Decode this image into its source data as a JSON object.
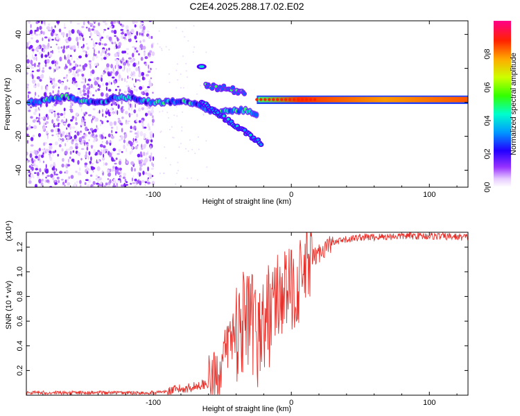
{
  "title": "C2E4.2025.288.17.02.E02",
  "chart_data": [
    {
      "type": "heatmap",
      "name": "spectrogram",
      "xlabel": "Height of straight line (km)",
      "ylabel": "Frequency (Hz)",
      "xlim": [
        -192,
        128
      ],
      "ylim": [
        -50,
        48
      ],
      "xticks": [
        -100,
        0,
        100
      ],
      "yticks": [
        -40,
        -20,
        0,
        20,
        40
      ],
      "colorbar": {
        "label": "Normalized spectral amplitude",
        "range": [
          0.0,
          1.0
        ],
        "ticks": [
          0.0,
          0.2,
          0.4,
          0.6,
          0.8
        ]
      },
      "features": [
        {
          "description": "scattered background noise",
          "x_range": [
            -192,
            -100
          ],
          "y_range": [
            -50,
            48
          ]
        },
        {
          "description": "main signal band near 0 Hz",
          "x_range": [
            -192,
            128
          ],
          "y_center": 1.5
        },
        {
          "description": "branch from main band",
          "x": [
            -65,
            -40,
            -22
          ],
          "y": [
            0,
            -12,
            -24
          ]
        },
        {
          "description": "upper branch",
          "x": [
            -64,
            -50,
            -35
          ],
          "y": [
            21,
            10,
            6
          ]
        }
      ]
    },
    {
      "type": "line",
      "name": "snr",
      "xlabel": "Height of straight line (km)",
      "ylabel": "SNR (10 * v/v)",
      "yscale_label": "(x10⁴)",
      "xlim": [
        -192,
        128
      ],
      "ylim": [
        0,
        1.32
      ],
      "xticks": [
        -100,
        0,
        100
      ],
      "yticks": [
        0.2,
        0.4,
        0.6,
        0.8,
        1.0,
        1.2
      ],
      "color": "#e8302a",
      "series": [
        {
          "name": "SNR",
          "x": [
            -192,
            -160,
            -130,
            -110,
            -100,
            -90,
            -80,
            -70,
            -60,
            -55,
            -50,
            -45,
            -40,
            -35,
            -30,
            -25,
            -20,
            -15,
            -10,
            -5,
            0,
            5,
            10,
            15,
            20,
            25,
            30,
            40,
            50,
            60,
            80,
            100,
            128
          ],
          "values": [
            0.02,
            0.02,
            0.02,
            0.02,
            0.02,
            0.03,
            0.05,
            0.07,
            0.1,
            0.15,
            0.25,
            0.45,
            0.55,
            0.6,
            0.55,
            0.5,
            0.55,
            0.7,
            0.8,
            0.85,
            0.85,
            0.9,
            1.0,
            1.1,
            1.15,
            1.2,
            1.23,
            1.26,
            1.28,
            1.28,
            1.29,
            1.29,
            1.28
          ]
        }
      ]
    }
  ]
}
